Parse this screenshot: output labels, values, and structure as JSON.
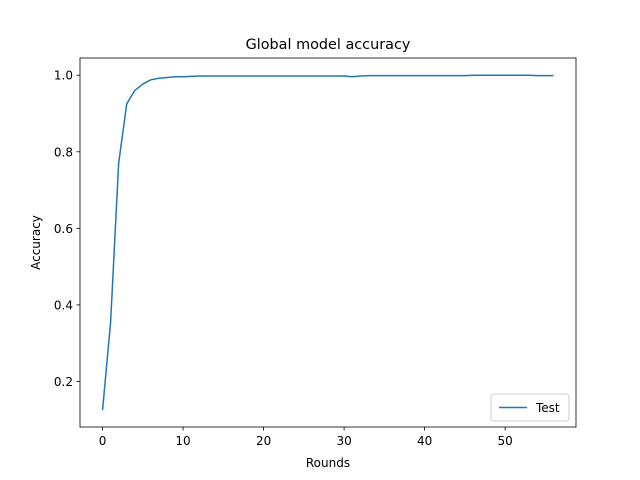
{
  "chart_data": {
    "type": "line",
    "title": "Global model accuracy",
    "xlabel": "Rounds",
    "ylabel": "Accuracy",
    "xlim": [
      -2.8,
      58.8
    ],
    "ylim": [
      0.081,
      1.045
    ],
    "xticks": [
      0,
      10,
      20,
      30,
      40,
      50
    ],
    "yticks": [
      0.2,
      0.4,
      0.6,
      0.8,
      1.0
    ],
    "xtick_labels": [
      "0",
      "10",
      "20",
      "30",
      "40",
      "50"
    ],
    "ytick_labels": [
      "0.2",
      "0.4",
      "0.6",
      "0.8",
      "1.0"
    ],
    "grid": false,
    "legend_position": "lower-right",
    "series": [
      {
        "name": "Test",
        "color": "#1f77b4",
        "x": [
          0,
          1,
          2,
          3,
          4,
          5,
          6,
          7,
          8,
          9,
          10,
          11,
          12,
          13,
          14,
          15,
          16,
          17,
          18,
          19,
          20,
          21,
          22,
          23,
          24,
          25,
          26,
          27,
          28,
          29,
          30,
          31,
          32,
          33,
          34,
          35,
          36,
          37,
          38,
          39,
          40,
          41,
          42,
          43,
          44,
          45,
          46,
          47,
          48,
          49,
          50,
          51,
          52,
          53,
          54,
          55,
          56
        ],
        "y": [
          0.125,
          0.355,
          0.77,
          0.925,
          0.96,
          0.977,
          0.988,
          0.992,
          0.994,
          0.996,
          0.996,
          0.997,
          0.998,
          0.998,
          0.998,
          0.998,
          0.998,
          0.998,
          0.998,
          0.998,
          0.998,
          0.998,
          0.998,
          0.998,
          0.998,
          0.998,
          0.998,
          0.998,
          0.998,
          0.998,
          0.998,
          0.996,
          0.998,
          0.999,
          0.999,
          0.999,
          0.999,
          0.999,
          0.999,
          0.999,
          0.999,
          0.999,
          0.999,
          0.999,
          0.999,
          0.999,
          1.0,
          1.0,
          1.0,
          1.0,
          1.0,
          1.0,
          1.0,
          1.0,
          0.999,
          0.999,
          0.999
        ]
      }
    ]
  }
}
